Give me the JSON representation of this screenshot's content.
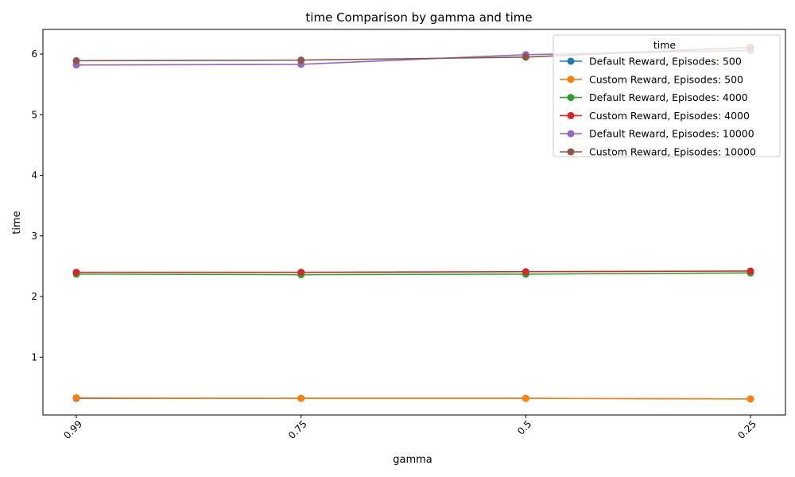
{
  "chart_data": {
    "type": "line",
    "title": "time Comparison by gamma and time",
    "xlabel": "gamma",
    "ylabel": "time",
    "categories": [
      "0.99",
      "0.75",
      "0.5",
      "0.25"
    ],
    "ylim": [
      0,
      6.4
    ],
    "y_ticks": [
      "1",
      "2",
      "3",
      "4",
      "5",
      "6"
    ],
    "grid": false,
    "legend": {
      "title": "time",
      "placement": "top-right"
    },
    "series": [
      {
        "name": "Default Reward, Episodes: 500",
        "color": "#1f77b4",
        "values": [
          0.32,
          0.32,
          0.32,
          0.31
        ]
      },
      {
        "name": "Custom Reward, Episodes: 500",
        "color": "#ff7f0e",
        "values": [
          0.33,
          0.32,
          0.32,
          0.31
        ]
      },
      {
        "name": "Default Reward, Episodes: 4000",
        "color": "#2ca02c",
        "values": [
          2.37,
          2.36,
          2.37,
          2.39
        ]
      },
      {
        "name": "Custom Reward, Episodes: 4000",
        "color": "#d62728",
        "values": [
          2.4,
          2.4,
          2.41,
          2.42
        ]
      },
      {
        "name": "Default Reward, Episodes: 10000",
        "color": "#9467bd",
        "values": [
          5.82,
          5.83,
          5.99,
          6.06
        ]
      },
      {
        "name": "Custom Reward, Episodes: 10000",
        "color": "#8c564b",
        "values": [
          5.89,
          5.9,
          5.95,
          6.11
        ]
      }
    ]
  }
}
